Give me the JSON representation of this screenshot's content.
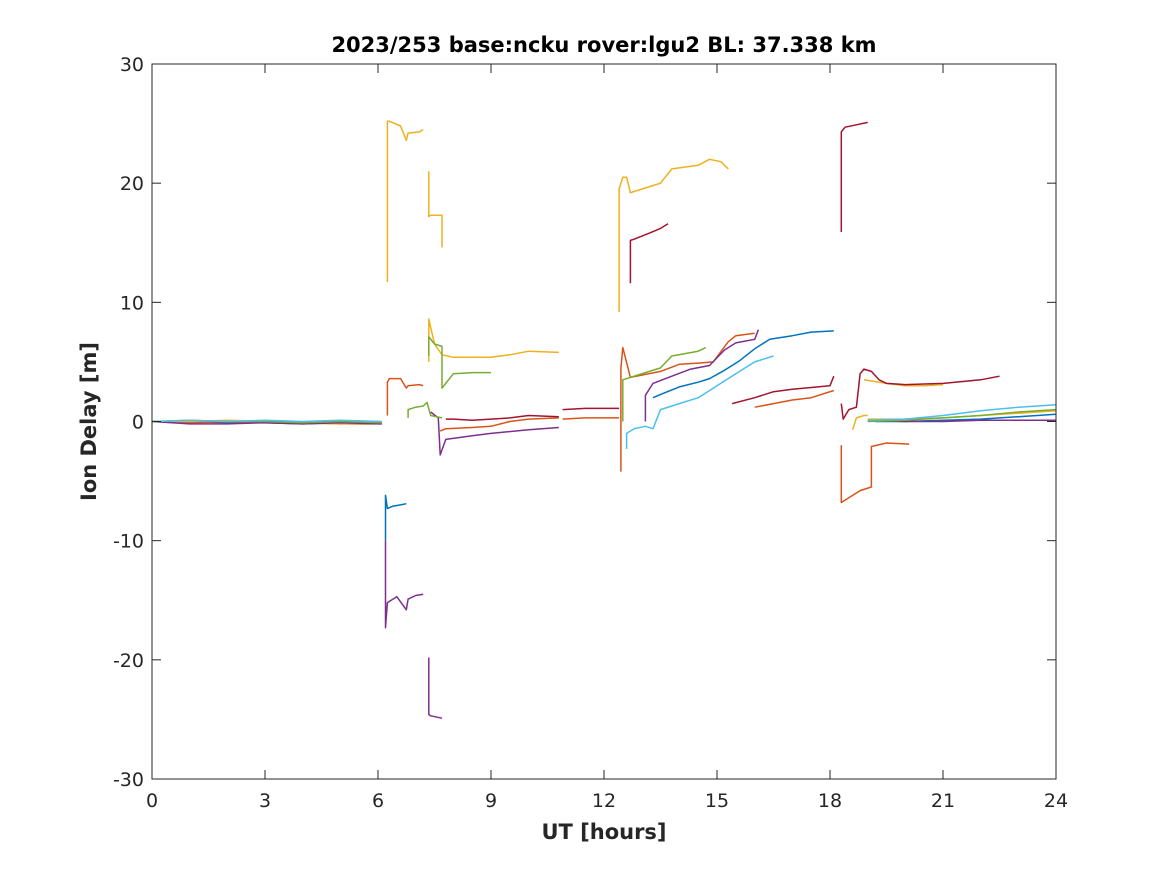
{
  "chart_data": {
    "type": "line",
    "title": "2023/253 base:ncku rover:lgu2 BL: 37.338 km",
    "xlabel": "UT [hours]",
    "ylabel": "Ion Delay [m]",
    "xlim": [
      0,
      24
    ],
    "ylim": [
      -30,
      30
    ],
    "xticks": [
      0,
      3,
      6,
      9,
      12,
      15,
      18,
      21,
      24
    ],
    "yticks": [
      -30,
      -20,
      -10,
      0,
      10,
      20,
      30
    ],
    "xtick_labels": [
      "0",
      "3",
      "6",
      "9",
      "12",
      "15",
      "18",
      "21",
      "24"
    ],
    "ytick_labels": [
      "-30",
      "-20",
      "-10",
      "0",
      "10",
      "20",
      "30"
    ],
    "grid": false,
    "legend": "none",
    "colors": [
      "#0072BD",
      "#D95319",
      "#EDB120",
      "#7E2F8E",
      "#77AC30",
      "#4DBEEE",
      "#A2142F"
    ],
    "series": [
      {
        "color": "#0072BD",
        "x": [
          0,
          1,
          2,
          3,
          4,
          5,
          6.1
        ],
        "y": [
          0,
          0,
          -0.1,
          -0.1,
          -0.2,
          -0.1,
          -0.1
        ]
      },
      {
        "color": "#0072BD",
        "x": [
          6.2,
          6.2,
          6.25,
          6.4,
          6.6,
          6.75
        ],
        "y": [
          -10,
          -6.2,
          -7.3,
          -7.1,
          -7.0,
          -6.9
        ]
      },
      {
        "color": "#0072BD",
        "x": [
          13.3,
          13.6,
          14.0,
          14.5,
          14.8,
          15.2,
          15.6,
          16.0,
          16.4,
          17.0,
          17.5,
          18.1
        ],
        "y": [
          2.0,
          2.4,
          2.9,
          3.3,
          3.6,
          4.3,
          5.1,
          6.1,
          6.9,
          7.2,
          7.5,
          7.6
        ]
      },
      {
        "color": "#0072BD",
        "x": [
          19.2,
          20.0,
          21.0,
          22.0,
          23.0,
          24.0
        ],
        "y": [
          0,
          0,
          0.1,
          0.2,
          0.4,
          0.6
        ]
      },
      {
        "color": "#D95319",
        "x": [
          0,
          1,
          2,
          3,
          4,
          5,
          6.1
        ],
        "y": [
          0,
          -0.1,
          0,
          -0.1,
          -0.1,
          -0.2,
          -0.2
        ]
      },
      {
        "color": "#D95319",
        "x": [
          6.25,
          6.25,
          6.3,
          6.6,
          6.75,
          6.8,
          7.1,
          7.2
        ],
        "y": [
          0.5,
          3.3,
          3.6,
          3.6,
          2.8,
          3.0,
          3.1,
          3.0
        ]
      },
      {
        "color": "#D95319",
        "x": [
          7.65,
          7.8,
          8.5,
          9.0,
          9.5,
          10.0,
          10.8
        ],
        "y": [
          -0.8,
          -0.6,
          -0.5,
          -0.4,
          0,
          0.2,
          0.3
        ]
      },
      {
        "color": "#D95319",
        "x": [
          10.9,
          11.5,
          12.0,
          12.4
        ],
        "y": [
          0.2,
          0.3,
          0.3,
          0.3
        ]
      },
      {
        "color": "#D95319",
        "x": [
          12.45,
          12.45,
          12.5,
          12.7,
          13.5,
          14.0,
          14.5,
          14.9,
          15.3,
          15.5,
          16.0
        ],
        "y": [
          -4.2,
          4.5,
          6.2,
          3.7,
          4.2,
          4.8,
          4.9,
          5.0,
          6.7,
          7.2,
          7.4
        ]
      },
      {
        "color": "#D95319",
        "x": [
          16.0,
          16.5,
          17.0,
          17.5,
          18.1
        ],
        "y": [
          1.2,
          1.5,
          1.8,
          2.0,
          2.6
        ]
      },
      {
        "color": "#D95319",
        "x": [
          18.3,
          18.3,
          18.6,
          18.8,
          19.1,
          19.1,
          19.5,
          20.1
        ],
        "y": [
          -2.0,
          -6.8,
          -6.2,
          -5.8,
          -5.5,
          -2.1,
          -1.8,
          -1.9
        ]
      },
      {
        "color": "#EDB120",
        "x": [
          0,
          1,
          2,
          3,
          4,
          5,
          6.1
        ],
        "y": [
          0,
          0,
          0.1,
          0,
          -0.1,
          -0.2,
          -0.1
        ]
      },
      {
        "color": "#EDB120",
        "x": [
          6.25,
          6.25,
          6.3,
          6.6,
          6.75,
          6.8,
          7.1,
          7.2
        ],
        "y": [
          11.7,
          25.2,
          25.2,
          24.8,
          23.6,
          24.2,
          24.3,
          24.5
        ]
      },
      {
        "color": "#EDB120",
        "x": [
          7.35,
          7.35,
          7.4,
          7.7,
          7.7
        ],
        "y": [
          21.0,
          17.2,
          17.3,
          17.3,
          14.6
        ]
      },
      {
        "color": "#EDB120",
        "x": [
          7.35,
          7.35,
          7.5,
          7.7,
          8.0,
          9.0,
          9.5,
          10.0,
          10.8
        ],
        "y": [
          5.0,
          8.6,
          6.5,
          5.6,
          5.4,
          5.4,
          5.6,
          5.9,
          5.8
        ]
      },
      {
        "color": "#EDB120",
        "x": [
          12.4,
          12.4,
          12.5,
          12.6,
          12.7,
          13.0,
          13.5,
          13.8,
          14.5,
          14.8,
          15.1,
          15.3
        ],
        "y": [
          9.2,
          19.5,
          20.5,
          20.5,
          19.2,
          19.5,
          20.0,
          21.2,
          21.5,
          22.0,
          21.8,
          21.2
        ]
      },
      {
        "color": "#EDB120",
        "x": [
          18.6,
          18.7,
          18.9,
          19.0
        ],
        "y": [
          -0.7,
          0.3,
          0.5,
          0.5
        ]
      },
      {
        "color": "#EDB120",
        "x": [
          18.9,
          19.5,
          20.0,
          20.5,
          21.0
        ],
        "y": [
          3.5,
          3.2,
          3.0,
          3.0,
          3.1
        ]
      },
      {
        "color": "#EDB120",
        "x": [
          19.0,
          20.0,
          21.0,
          22.0,
          23.0,
          24.0
        ],
        "y": [
          0.2,
          0.2,
          0.3,
          0.5,
          0.7,
          0.9
        ]
      },
      {
        "color": "#7E2F8E",
        "x": [
          0,
          1,
          2,
          3,
          4,
          5,
          6.1
        ],
        "y": [
          0,
          -0.2,
          -0.2,
          -0.1,
          -0.2,
          -0.1,
          -0.2
        ]
      },
      {
        "color": "#7E2F8E",
        "x": [
          6.2,
          6.2,
          6.25,
          6.5,
          6.75,
          6.8,
          7.0,
          7.2
        ],
        "y": [
          -10,
          -17.3,
          -15.2,
          -14.7,
          -15.8,
          -14.9,
          -14.6,
          -14.5
        ]
      },
      {
        "color": "#7E2F8E",
        "x": [
          7.35,
          7.35,
          7.4,
          7.7
        ],
        "y": [
          -19.8,
          -24.6,
          -24.7,
          -24.9
        ]
      },
      {
        "color": "#7E2F8E",
        "x": [
          7.4,
          7.6,
          7.65,
          7.8,
          8.5,
          9.0,
          10.0,
          10.8
        ],
        "y": [
          0.8,
          0.3,
          -2.8,
          -1.5,
          -1.2,
          -1.0,
          -0.7,
          -0.5
        ]
      },
      {
        "color": "#7E2F8E",
        "x": [
          13.1,
          13.1,
          13.3,
          13.8,
          14.3,
          14.8,
          15.2,
          15.5,
          16.0,
          16.1
        ],
        "y": [
          0,
          2.2,
          3.2,
          3.8,
          4.4,
          4.7,
          6.0,
          6.6,
          6.9,
          7.7
        ]
      },
      {
        "color": "#7E2F8E",
        "x": [
          19.0,
          20.0,
          21.0,
          22.0,
          23.0,
          24.0
        ],
        "y": [
          0.1,
          0,
          0,
          0.1,
          0.1,
          0.1
        ]
      },
      {
        "color": "#77AC30",
        "x": [
          0,
          1,
          2,
          3,
          4,
          5,
          6.1
        ],
        "y": [
          0,
          0.1,
          0,
          0,
          -0.1,
          0,
          -0.1
        ]
      },
      {
        "color": "#77AC30",
        "x": [
          6.8,
          6.8,
          7.0,
          7.2,
          7.3,
          7.4,
          7.7
        ],
        "y": [
          0.3,
          1.0,
          1.2,
          1.3,
          1.6,
          0.5,
          0.3
        ]
      },
      {
        "color": "#77AC30",
        "x": [
          7.35,
          7.35,
          7.5,
          7.7,
          7.7,
          8.0,
          8.5,
          9.0
        ],
        "y": [
          5.5,
          7.1,
          6.5,
          6.3,
          2.8,
          4.0,
          4.1,
          4.1
        ]
      },
      {
        "color": "#77AC30",
        "x": [
          12.5,
          12.5,
          12.8,
          13.5,
          13.8,
          14.5,
          14.7
        ],
        "y": [
          0,
          3.5,
          3.8,
          4.5,
          5.5,
          5.9,
          6.2
        ]
      },
      {
        "color": "#77AC30",
        "x": [
          19.0,
          20.0,
          21.0,
          22.0,
          23.0,
          24.0
        ],
        "y": [
          0,
          0.1,
          0.3,
          0.5,
          0.8,
          1.0
        ]
      },
      {
        "color": "#4DBEEE",
        "x": [
          0,
          1,
          2,
          3,
          4,
          5,
          6.1
        ],
        "y": [
          0,
          0.1,
          0,
          0.1,
          0,
          0.1,
          0
        ]
      },
      {
        "color": "#4DBEEE",
        "x": [
          12.6,
          12.6,
          12.8,
          13.1,
          13.3,
          13.5,
          14.0,
          14.5,
          15.0,
          15.5,
          16.0,
          16.5
        ],
        "y": [
          -2.3,
          -1.0,
          -0.6,
          -0.4,
          -0.6,
          1.0,
          1.5,
          2.0,
          3.0,
          4.0,
          5.0,
          5.5
        ]
      },
      {
        "color": "#4DBEEE",
        "x": [
          19.0,
          20.0,
          21.0,
          22.0,
          23.0,
          24.0
        ],
        "y": [
          0.1,
          0.2,
          0.5,
          0.9,
          1.2,
          1.4
        ]
      },
      {
        "color": "#A2142F",
        "x": [
          7.8,
          8.0,
          8.5,
          9.0,
          9.5,
          10.0,
          10.8
        ],
        "y": [
          0.2,
          0.2,
          0.1,
          0.2,
          0.3,
          0.5,
          0.4
        ]
      },
      {
        "color": "#A2142F",
        "x": [
          10.9,
          11.5,
          12.0,
          12.4
        ],
        "y": [
          1.0,
          1.1,
          1.1,
          1.1
        ]
      },
      {
        "color": "#A2142F",
        "x": [
          12.7,
          12.7,
          12.8,
          13.2,
          13.5,
          13.7
        ],
        "y": [
          11.6,
          15.2,
          15.3,
          15.8,
          16.2,
          16.6
        ]
      },
      {
        "color": "#A2142F",
        "x": [
          15.4,
          16.0,
          16.5,
          17.0,
          18.0,
          18.1
        ],
        "y": [
          1.5,
          2.0,
          2.5,
          2.7,
          3.0,
          3.8
        ]
      },
      {
        "color": "#A2142F",
        "x": [
          18.3,
          18.3,
          18.4,
          18.7,
          19.0
        ],
        "y": [
          15.9,
          24.3,
          24.7,
          24.9,
          25.1
        ]
      },
      {
        "color": "#A2142F",
        "x": [
          18.3,
          18.35,
          18.5,
          18.7,
          18.8,
          18.9,
          19.1,
          19.3,
          19.5,
          20.0,
          21.0,
          22.0,
          22.5
        ],
        "y": [
          1.5,
          0.2,
          1.0,
          1.2,
          4.0,
          4.4,
          4.2,
          3.5,
          3.2,
          3.1,
          3.2,
          3.5,
          3.8
        ]
      }
    ]
  }
}
